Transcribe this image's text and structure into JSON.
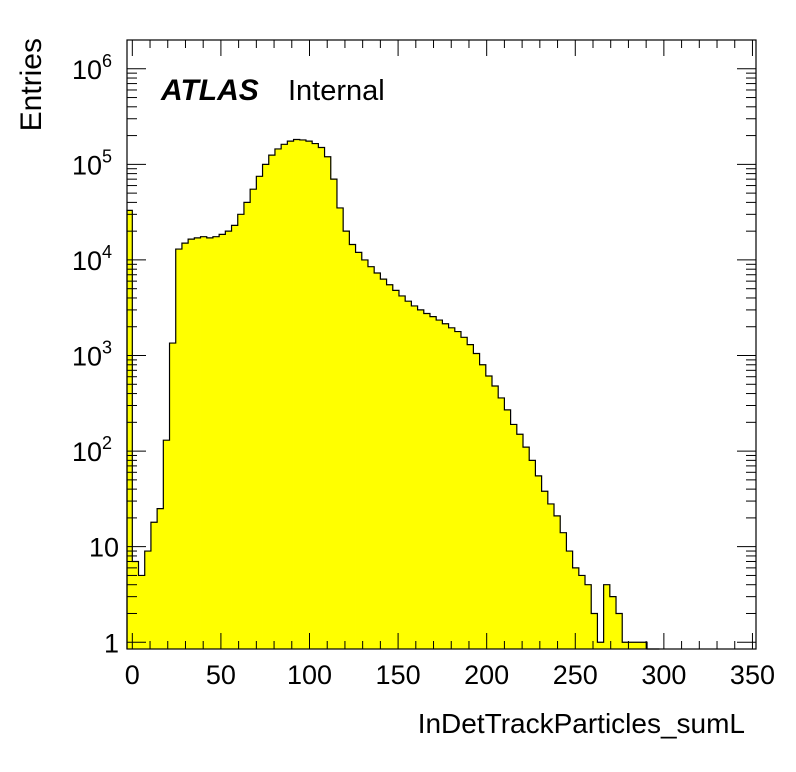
{
  "chart_data": {
    "type": "bar",
    "histogram": true,
    "log_y": true,
    "xlabel": "InDetTrackParticles_sumL",
    "ylabel": "Entries",
    "xlim": [
      -3,
      352
    ],
    "ylim": [
      0.85,
      2000000
    ],
    "x_ticks": [
      0,
      50,
      100,
      150,
      200,
      250,
      300,
      350
    ],
    "x_tick_labels": [
      "0",
      "50",
      "100",
      "150",
      "200",
      "250",
      "300",
      "350"
    ],
    "y_ticks": [
      1,
      10,
      100,
      1000,
      10000,
      100000,
      1000000
    ],
    "y_tick_labels": [
      {
        "base": "1",
        "exp": ""
      },
      {
        "base": "10",
        "exp": ""
      },
      {
        "base": "10",
        "exp": "2"
      },
      {
        "base": "10",
        "exp": "3"
      },
      {
        "base": "10",
        "exp": "4"
      },
      {
        "base": "10",
        "exp": "5"
      },
      {
        "base": "10",
        "exp": "6"
      }
    ],
    "bin_start": -3.5,
    "bin_width": 3.5,
    "values": [
      33000,
      7,
      5,
      9,
      18,
      25,
      130,
      1350,
      13000,
      15000,
      16500,
      17000,
      17500,
      17000,
      17500,
      18500,
      20000,
      23000,
      30000,
      40000,
      55000,
      75000,
      100000,
      125000,
      145000,
      162000,
      175000,
      182000,
      180000,
      175000,
      165000,
      150000,
      120000,
      70000,
      35000,
      20000,
      14500,
      12000,
      10000,
      8500,
      7300,
      6300,
      5500,
      4800,
      4200,
      3700,
      3300,
      3000,
      2750,
      2550,
      2350,
      2150,
      1950,
      1780,
      1550,
      1300,
      1050,
      800,
      610,
      480,
      360,
      270,
      190,
      150,
      110,
      80,
      55,
      38,
      28,
      21,
      14,
      9,
      6,
      5,
      4,
      2,
      1,
      4,
      3,
      2,
      1,
      1,
      1,
      1,
      0,
      0
    ],
    "fill_color": "#ffff00",
    "line_color": "#000000",
    "grid": false,
    "legend": "none",
    "annotations": {
      "experiment": "ATLAS",
      "status": "Internal"
    }
  }
}
